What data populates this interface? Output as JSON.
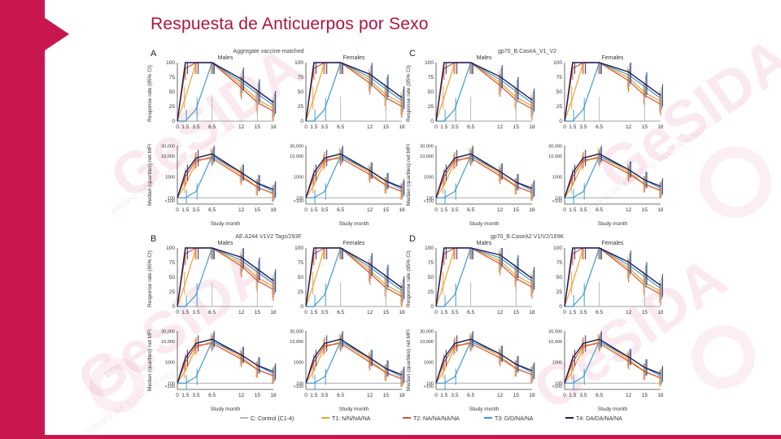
{
  "slide": {
    "title": "Respuesta de Anticuerpos por Sexo",
    "watermark": "GeSIDA",
    "watermark_sub": "GRUPO DE ESTUDIO DEL SIDA-SEIMC",
    "colors": {
      "brand": "#c8174f",
      "title": "#b0123f"
    }
  },
  "chart_data": {
    "type": "line",
    "panels": [
      {
        "letter": "A",
        "antigen": "Aggregate vaccine-matched"
      },
      {
        "letter": "B",
        "antigen": "AE.A244 V1V2 Tags/293F"
      },
      {
        "letter": "C",
        "antigen": "gp70_B.CaseA_V1_V2"
      },
      {
        "letter": "D",
        "antigen": "gp70_B.CaseA2 V1/V2/169K"
      }
    ],
    "sex_labels": [
      "Males",
      "Females"
    ],
    "xlabel": "Study month",
    "x_ticks": [
      "0",
      "1.5",
      "3.5",
      "6.5",
      "12",
      "15",
      "18"
    ],
    "x": [
      0,
      1.5,
      3.5,
      6.5,
      12,
      15,
      18
    ],
    "response_rate": {
      "ylabel": "Response rate (95% CI)",
      "y_ticks": [
        "0",
        "25",
        "50",
        "75",
        "100"
      ],
      "ylim": [
        0,
        100
      ]
    },
    "mfi": {
      "ylabel": "Median (quartiles) net MFI",
      "y_ticks_a": [
        "<100",
        "100",
        "1000",
        "10,000",
        "30,000"
      ],
      "y_ticks_b": [
        "<100",
        "100",
        "1000",
        "10,000",
        "30,000"
      ],
      "y_ticks_left": [
        "<100",
        "100",
        "1000",
        "10,000",
        "30,000"
      ],
      "ylim_log": [
        1.7,
        4.5
      ]
    },
    "legend": [
      {
        "label": "C: Control (C1-4)",
        "color": "#b5b5b5"
      },
      {
        "label": "T1: N/N/NA/NA",
        "color": "#f0a030"
      },
      {
        "label": "T2: NA/NA/NA/NA",
        "color": "#d9532c"
      },
      {
        "label": "T3: D/D/NA/NA",
        "color": "#3a9ad9"
      },
      {
        "label": "T4: DA/DA/NA/NA",
        "color": "#1d1d5c"
      }
    ],
    "series_rate_pattern": {
      "Control": [
        0,
        0,
        0,
        0,
        0,
        0,
        0
      ],
      "T1": [
        0,
        40,
        100,
        100,
        70,
        45,
        30
      ],
      "T2": [
        0,
        90,
        100,
        100,
        65,
        40,
        25
      ],
      "T3": [
        0,
        0,
        20,
        100,
        75,
        55,
        35
      ],
      "T4": [
        0,
        100,
        100,
        100,
        80,
        60,
        40
      ]
    },
    "series_mfi_pattern": {
      "Control": [
        2.0,
        2.0,
        2.0,
        2.0,
        2.0,
        2.0,
        2.0
      ],
      "T1": [
        2.0,
        2.6,
        3.7,
        4.0,
        3.2,
        2.6,
        2.3
      ],
      "T2": [
        2.0,
        3.0,
        3.8,
        3.9,
        3.1,
        2.6,
        2.3
      ],
      "T3": [
        2.0,
        2.0,
        2.3,
        4.0,
        3.3,
        2.8,
        2.4
      ],
      "T4": [
        2.0,
        3.2,
        3.9,
        4.1,
        3.3,
        2.8,
        2.5
      ]
    }
  }
}
